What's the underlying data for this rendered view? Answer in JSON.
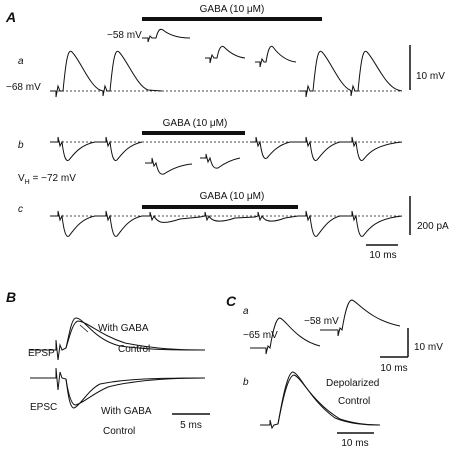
{
  "panel_a": {
    "label": "A",
    "row_a": {
      "label": "a",
      "drug": "GABA (10 μM)",
      "inset_potential": "−58 mV",
      "resting_potential": "−68 mV",
      "scale_voltage": "10 mV"
    },
    "row_b": {
      "label": "b",
      "drug": "GABA (10 μM)",
      "holding": {
        "symbol": "V",
        "subscript": "H",
        "text": " = −72 mV"
      }
    },
    "row_c": {
      "label": "c",
      "drug": "GABA (10 μM)",
      "scale_current": "200 pA",
      "scale_time": "10 ms"
    }
  },
  "panel_b": {
    "label": "B",
    "epsp_label": "EPSP",
    "epsp_with_gaba": "With GABA",
    "epsp_control": "Control",
    "epsc_label": "EPSC",
    "epsc_with_gaba": "With GABA",
    "epsc_control": "Control",
    "scale_time": "5 ms"
  },
  "panel_c": {
    "label": "C",
    "sub_a": {
      "label": "a",
      "potential_1": "−65 mV",
      "potential_2": "−58 mV",
      "scale_voltage": "10 mV",
      "scale_time": "10 ms"
    },
    "sub_b": {
      "label": "b",
      "depolarized": "Depolarized",
      "control": "Control",
      "scale_time": "10 ms"
    }
  }
}
